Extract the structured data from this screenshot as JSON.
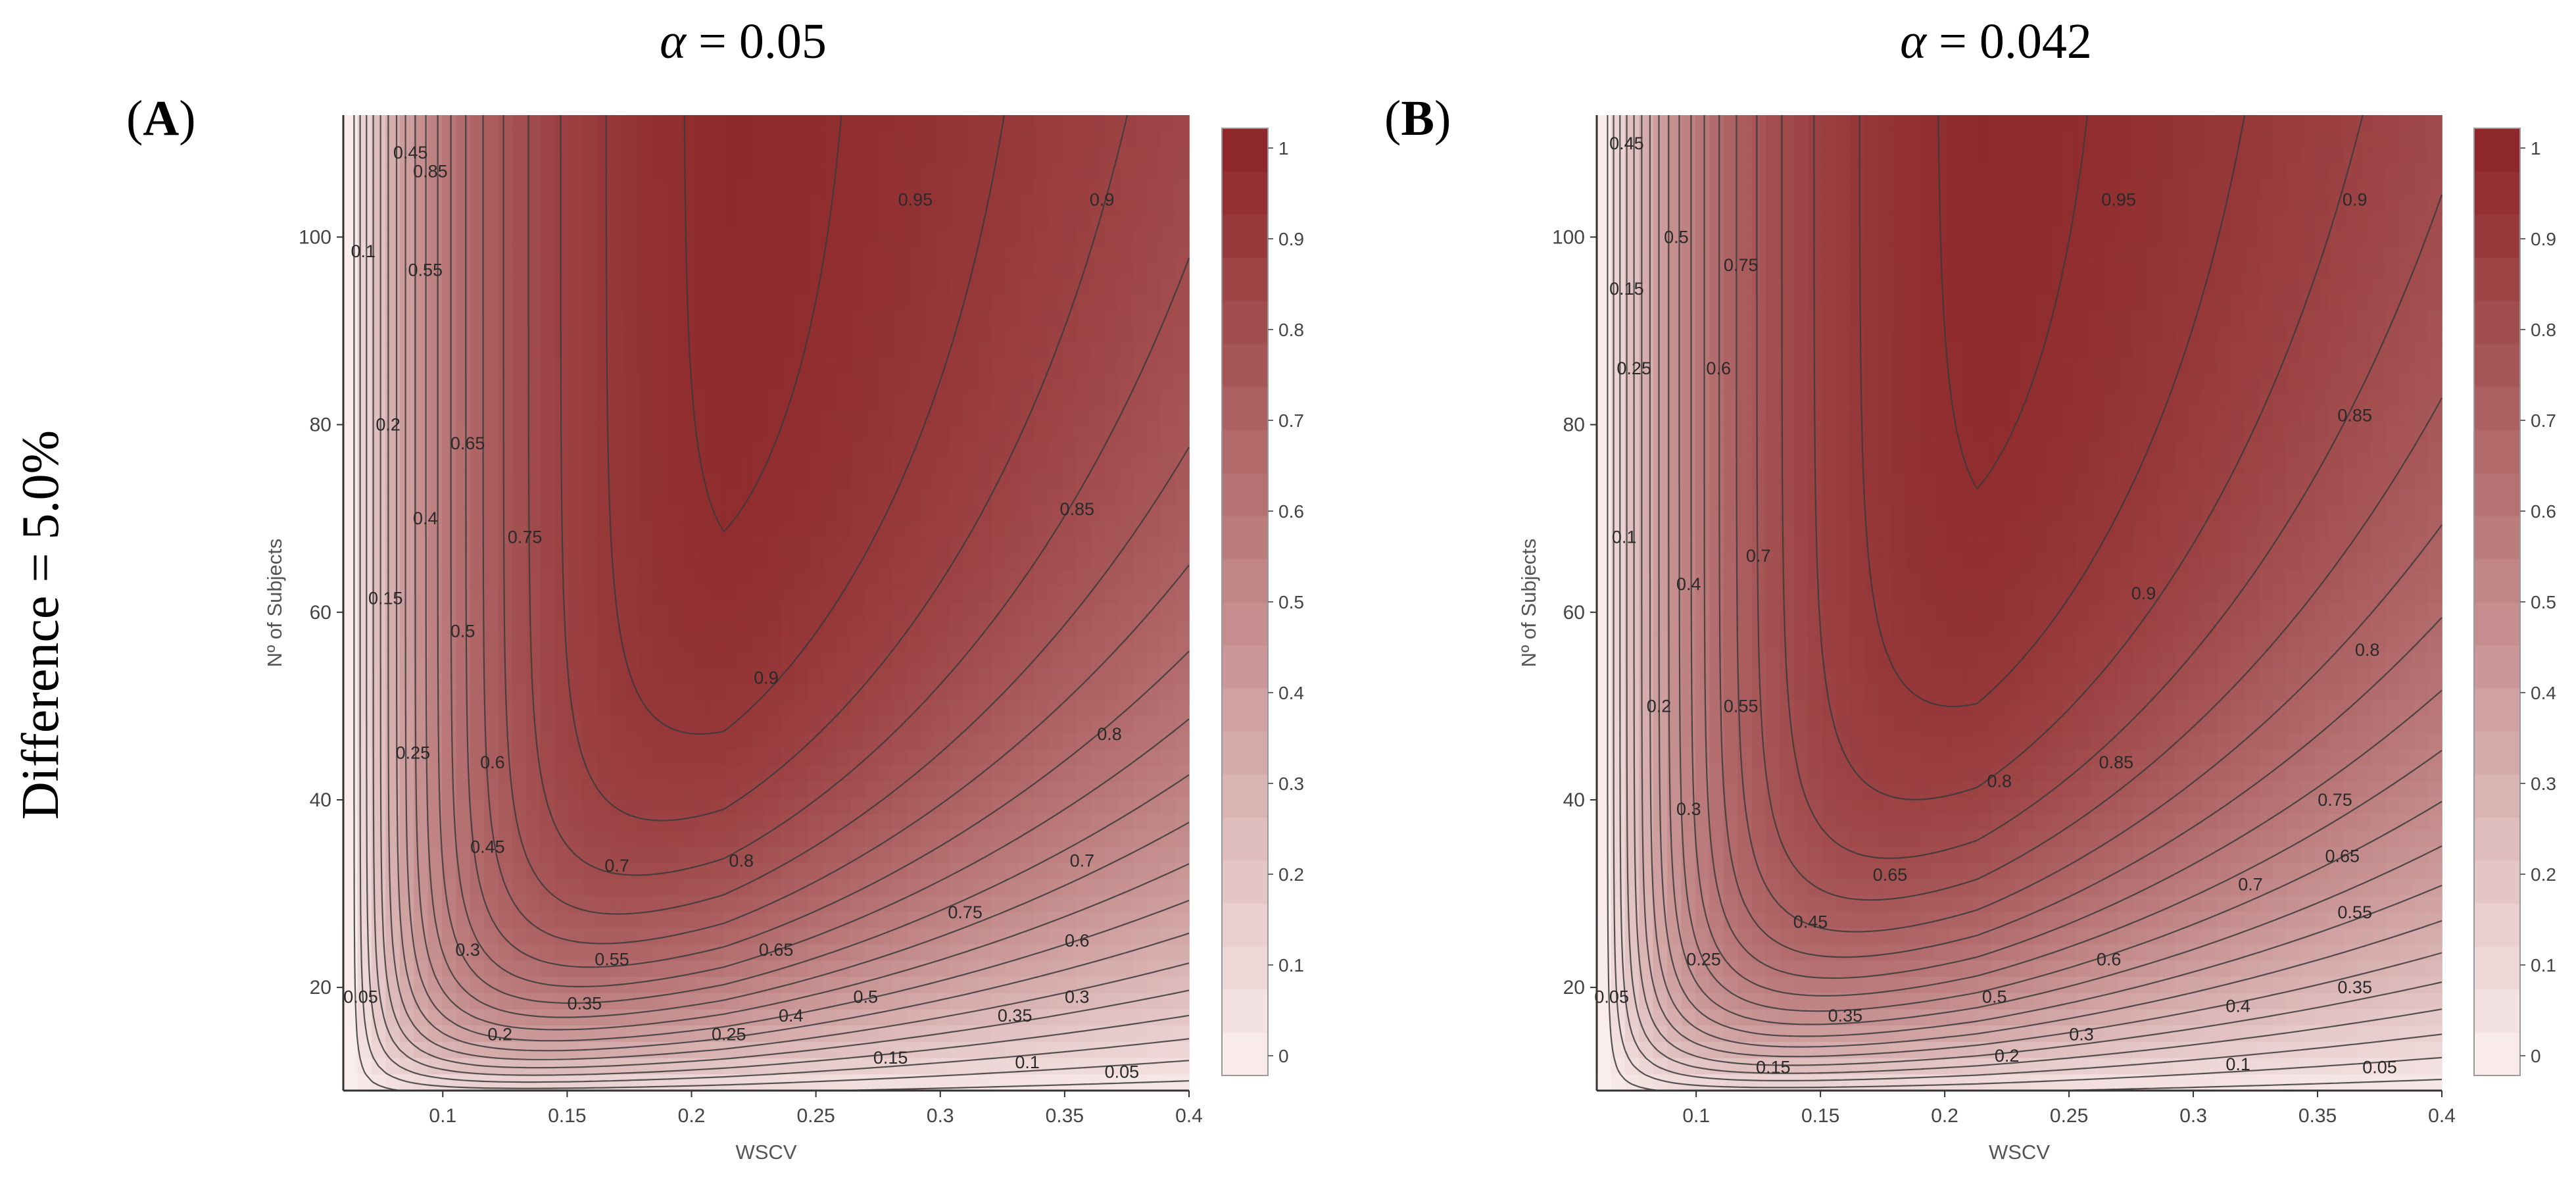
{
  "figure": {
    "row_label": "Difference = 5.0%"
  },
  "chart_data": [
    {
      "type": "contour",
      "panel_label": "(A)",
      "panel_letter": "A",
      "title": "α = 0.05",
      "title_symbol": "α",
      "title_value": "= 0.05",
      "xlabel": "WSCV",
      "ylabel": "Nº of Subjects",
      "x_range": [
        0.06,
        0.4
      ],
      "y_range": [
        9,
        113
      ],
      "x_ticks": [
        0.1,
        0.15,
        0.2,
        0.25,
        0.3,
        0.35,
        0.4
      ],
      "x_tick_labels": [
        "0.1",
        "0.15",
        "0.2",
        "0.25",
        "0.3",
        "0.35",
        "0.4"
      ],
      "y_ticks": [
        20,
        40,
        60,
        80,
        100
      ],
      "y_tick_labels": [
        "20",
        "40",
        "60",
        "80",
        "100"
      ],
      "z_range": [
        0,
        1
      ],
      "contour_levels": [
        0.05,
        0.1,
        0.15,
        0.2,
        0.25,
        0.3,
        0.35,
        0.4,
        0.45,
        0.5,
        0.55,
        0.6,
        0.65,
        0.7,
        0.75,
        0.8,
        0.85,
        0.9,
        0.95
      ],
      "colorbar_ticks": [
        0,
        0.1,
        0.2,
        0.3,
        0.4,
        0.5,
        0.6,
        0.7,
        0.8,
        0.9,
        1
      ],
      "colorbar_tick_labels": [
        "0",
        "0.1",
        "0.2",
        "0.3",
        "0.4",
        "0.5",
        "0.6",
        "0.7",
        "0.8",
        "0.9",
        "1"
      ],
      "colors": {
        "low": "#fbf0ef",
        "high": "#8b2325",
        "line": "#3a3a3a"
      },
      "contour_labels": [
        {
          "text": "0.05",
          "x": 0.373,
          "y": 11.0
        },
        {
          "text": "0.1",
          "x": 0.335,
          "y": 12.0
        },
        {
          "text": "0.15",
          "x": 0.28,
          "y": 12.5
        },
        {
          "text": "0.2",
          "x": 0.123,
          "y": 15.0
        },
        {
          "text": "0.25",
          "x": 0.215,
          "y": 15.0
        },
        {
          "text": "0.3",
          "x": 0.355,
          "y": 19.0
        },
        {
          "text": "0.35",
          "x": 0.157,
          "y": 18.3
        },
        {
          "text": "0.35",
          "x": 0.33,
          "y": 17.0
        },
        {
          "text": "0.4",
          "x": 0.24,
          "y": 17.0
        },
        {
          "text": "0.5",
          "x": 0.27,
          "y": 19.0
        },
        {
          "text": "0.55",
          "x": 0.168,
          "y": 23.0
        },
        {
          "text": "0.6",
          "x": 0.355,
          "y": 25.0
        },
        {
          "text": "0.65",
          "x": 0.234,
          "y": 24.0
        },
        {
          "text": "0.7",
          "x": 0.17,
          "y": 33.0
        },
        {
          "text": "0.7",
          "x": 0.357,
          "y": 33.5
        },
        {
          "text": "0.75",
          "x": 0.31,
          "y": 28.0
        },
        {
          "text": "0.8",
          "x": 0.22,
          "y": 33.5
        },
        {
          "text": "0.8",
          "x": 0.368,
          "y": 47.0
        },
        {
          "text": "0.85",
          "x": 0.095,
          "y": 107.0
        },
        {
          "text": "0.85",
          "x": 0.355,
          "y": 71.0
        },
        {
          "text": "0.9",
          "x": 0.23,
          "y": 53.0
        },
        {
          "text": "0.9",
          "x": 0.365,
          "y": 104.0
        },
        {
          "text": "0.95",
          "x": 0.29,
          "y": 104.0
        },
        {
          "text": "0.75",
          "x": 0.133,
          "y": 68.0
        },
        {
          "text": "0.65",
          "x": 0.11,
          "y": 78.0
        },
        {
          "text": "0.6",
          "x": 0.12,
          "y": 44.0
        },
        {
          "text": "0.55",
          "x": 0.093,
          "y": 96.5
        },
        {
          "text": "0.5",
          "x": 0.108,
          "y": 58.0
        },
        {
          "text": "0.45",
          "x": 0.087,
          "y": 109.0
        },
        {
          "text": "0.45",
          "x": 0.118,
          "y": 35.0
        },
        {
          "text": "0.4",
          "x": 0.093,
          "y": 70.0
        },
        {
          "text": "0.3",
          "x": 0.11,
          "y": 24.0
        },
        {
          "text": "0.25",
          "x": 0.088,
          "y": 45.0
        },
        {
          "text": "0.2",
          "x": 0.078,
          "y": 80.0
        },
        {
          "text": "0.15",
          "x": 0.077,
          "y": 61.5
        },
        {
          "text": "0.1",
          "x": 0.068,
          "y": 98.5
        },
        {
          "text": "0.05",
          "x": 0.067,
          "y": 19.0
        }
      ]
    },
    {
      "type": "contour",
      "panel_label": "(B)",
      "panel_letter": "B",
      "title": "α = 0.042",
      "title_symbol": "α",
      "title_value": "= 0.042",
      "xlabel": "WSCV",
      "ylabel": "Nº of Subjects",
      "x_range": [
        0.06,
        0.4
      ],
      "y_range": [
        9,
        113
      ],
      "x_ticks": [
        0.1,
        0.15,
        0.2,
        0.25,
        0.3,
        0.35,
        0.4
      ],
      "x_tick_labels": [
        "0.1",
        "0.15",
        "0.2",
        "0.25",
        "0.3",
        "0.35",
        "0.4"
      ],
      "y_ticks": [
        20,
        40,
        60,
        80,
        100
      ],
      "y_tick_labels": [
        "20",
        "40",
        "60",
        "80",
        "100"
      ],
      "z_range": [
        0,
        1
      ],
      "contour_levels": [
        0.05,
        0.1,
        0.15,
        0.2,
        0.25,
        0.3,
        0.35,
        0.4,
        0.45,
        0.5,
        0.55,
        0.6,
        0.65,
        0.7,
        0.75,
        0.8,
        0.85,
        0.9,
        0.95
      ],
      "colorbar_ticks": [
        0,
        0.1,
        0.2,
        0.3,
        0.4,
        0.5,
        0.6,
        0.7,
        0.8,
        0.9,
        1
      ],
      "colorbar_tick_labels": [
        "0",
        "0.1",
        "0.2",
        "0.3",
        "0.4",
        "0.5",
        "0.6",
        "0.7",
        "0.8",
        "0.9",
        "1"
      ],
      "colors": {
        "low": "#fbf0ef",
        "high": "#8b2325",
        "line": "#3a3a3a"
      },
      "contour_labels": [
        {
          "text": "0.05",
          "x": 0.375,
          "y": 11.5
        },
        {
          "text": "0.1",
          "x": 0.318,
          "y": 11.8
        },
        {
          "text": "0.15",
          "x": 0.131,
          "y": 11.5
        },
        {
          "text": "0.2",
          "x": 0.225,
          "y": 12.7
        },
        {
          "text": "0.25",
          "x": 0.103,
          "y": 23.0
        },
        {
          "text": "0.3",
          "x": 0.255,
          "y": 15.0
        },
        {
          "text": "0.35",
          "x": 0.16,
          "y": 17.0
        },
        {
          "text": "0.35",
          "x": 0.365,
          "y": 20.0
        },
        {
          "text": "0.4",
          "x": 0.318,
          "y": 18.0
        },
        {
          "text": "0.45",
          "x": 0.146,
          "y": 27.0
        },
        {
          "text": "0.5",
          "x": 0.22,
          "y": 19.0
        },
        {
          "text": "0.55",
          "x": 0.365,
          "y": 28.0
        },
        {
          "text": "0.55",
          "x": 0.118,
          "y": 50.0
        },
        {
          "text": "0.6",
          "x": 0.266,
          "y": 23.0
        },
        {
          "text": "0.6",
          "x": 0.109,
          "y": 86.0
        },
        {
          "text": "0.65",
          "x": 0.178,
          "y": 32.0
        },
        {
          "text": "0.65",
          "x": 0.36,
          "y": 34.0
        },
        {
          "text": "0.7",
          "x": 0.323,
          "y": 31.0
        },
        {
          "text": "0.7",
          "x": 0.125,
          "y": 66.0
        },
        {
          "text": "0.75",
          "x": 0.357,
          "y": 40.0
        },
        {
          "text": "0.75",
          "x": 0.118,
          "y": 97.0
        },
        {
          "text": "0.8",
          "x": 0.222,
          "y": 42.0
        },
        {
          "text": "0.8",
          "x": 0.37,
          "y": 56.0
        },
        {
          "text": "0.85",
          "x": 0.269,
          "y": 44.0
        },
        {
          "text": "0.85",
          "x": 0.365,
          "y": 81.0
        },
        {
          "text": "0.9",
          "x": 0.28,
          "y": 62.0
        },
        {
          "text": "0.9",
          "x": 0.365,
          "y": 104.0
        },
        {
          "text": "0.95",
          "x": 0.27,
          "y": 104.0
        },
        {
          "text": "0.5",
          "x": 0.092,
          "y": 100.0
        },
        {
          "text": "0.45",
          "x": 0.072,
          "y": 110.0
        },
        {
          "text": "0.4",
          "x": 0.097,
          "y": 63.0
        },
        {
          "text": "0.3",
          "x": 0.097,
          "y": 39.0
        },
        {
          "text": "0.25",
          "x": 0.075,
          "y": 86.0
        },
        {
          "text": "0.2",
          "x": 0.085,
          "y": 50.0
        },
        {
          "text": "0.15",
          "x": 0.072,
          "y": 94.5
        },
        {
          "text": "0.1",
          "x": 0.071,
          "y": 68.0
        },
        {
          "text": "0.05",
          "x": 0.066,
          "y": 19.0
        }
      ]
    }
  ]
}
